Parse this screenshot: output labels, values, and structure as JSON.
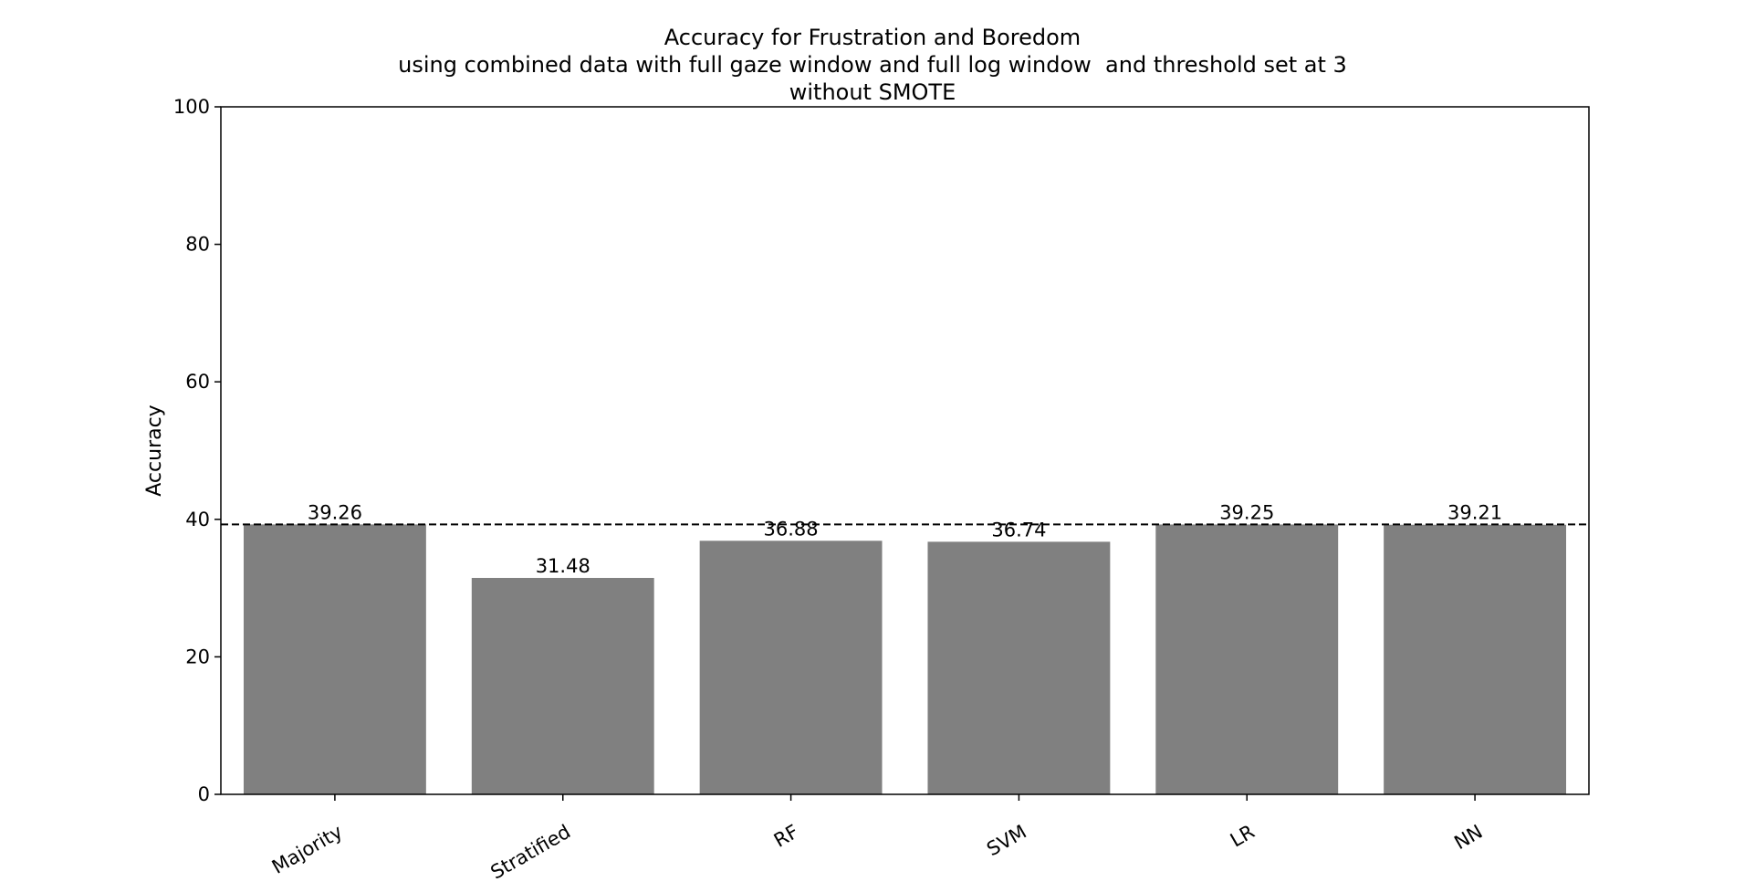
{
  "chart_data": {
    "type": "bar",
    "title_lines": [
      "Accuracy for Frustration and Boredom",
      "using combined data with full gaze window and full log window  and threshold set at 3",
      "without SMOTE"
    ],
    "xlabel": "",
    "ylabel": "Accuracy",
    "categories": [
      "Majority",
      "Stratified",
      "RF",
      "SVM",
      "LR",
      "NN"
    ],
    "values": [
      39.26,
      31.48,
      36.88,
      36.74,
      39.25,
      39.21
    ],
    "value_labels": [
      "39.26",
      "31.48",
      "36.88",
      "36.74",
      "39.25",
      "39.21"
    ],
    "ylim": [
      0,
      100
    ],
    "yticks": [
      0,
      20,
      40,
      60,
      80,
      100
    ],
    "baseline": 39.26,
    "bar_color": "#808080",
    "grid": false,
    "legend": "none"
  }
}
